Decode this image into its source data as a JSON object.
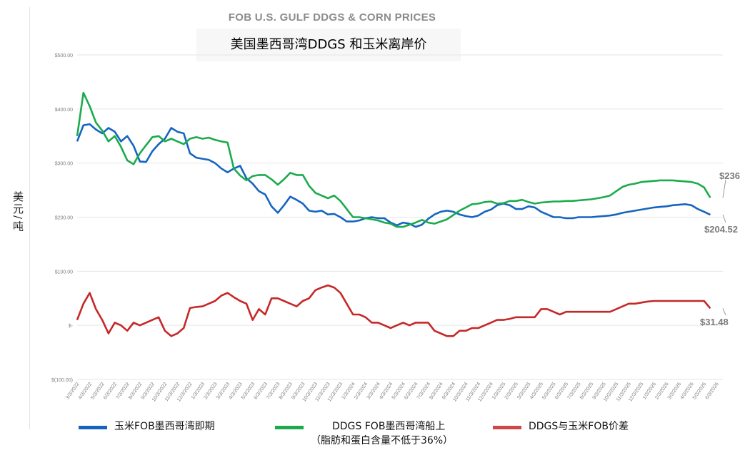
{
  "title_en": "FOB U.S. GULF DDGS & CORN PRICES",
  "title_cn": "美国墨西哥湾DDGS 和玉米离岸价",
  "y_unit": "美元/吨",
  "legend": {
    "corn": "玉米FOB墨西哥湾即期",
    "ddgs": "DDGS FOB墨西哥湾船上",
    "ddgs_note": "（脂肪和蛋白含量不低于36%）",
    "spread": "DDGS与玉米FOB价差"
  },
  "end_labels": {
    "ddgs": "$236",
    "corn": "$204.52",
    "spread": "$31.48"
  },
  "chart_data": {
    "type": "line",
    "title": "FOB U.S. GULF DDGS & CORN PRICES",
    "ylabel": "美元/吨",
    "ylim": [
      -100,
      500
    ],
    "y_ticks": [
      -100,
      0,
      100,
      200,
      300,
      400,
      500
    ],
    "y_tick_labels": [
      "$(100.00)",
      "$-",
      "$100.00",
      "$200.00",
      "$300.00",
      "$400.00",
      "$500.00"
    ],
    "x_tick_labels": [
      "3/3/2022",
      "4/3/2022",
      "5/3/2022",
      "6/3/2022",
      "7/3/2022",
      "8/3/2022",
      "9/3/2022",
      "10/3/2022",
      "11/3/2022",
      "12/3/2022",
      "1/3/2023",
      "2/3/2023",
      "3/3/2023",
      "4/3/2023",
      "5/3/2023",
      "6/3/2023",
      "7/3/2023",
      "8/3/2023",
      "9/3/2023",
      "10/3/2023",
      "11/3/2023",
      "12/3/2023",
      "1/3/2024",
      "2/3/2024",
      "3/3/2024",
      "4/3/2024",
      "5/3/2024",
      "6/3/2024",
      "7/3/2024",
      "8/3/2024",
      "9/3/2024",
      "10/3/2024",
      "11/3/2024",
      "12/3/2024",
      "1/3/2025",
      "2/3/2025",
      "3/3/2025",
      "4/3/2025",
      "5/3/2025",
      "6/3/2025",
      "7/3/2025",
      "8/3/2025",
      "9/3/2025",
      "10/3/2025",
      "11/3/2025",
      "12/3/2025",
      "1/3/2026",
      "2/3/2026",
      "3/3/2026",
      "4/3/2026",
      "5/3/2026",
      "6/3/2026"
    ],
    "grid": true,
    "legend_position": "bottom",
    "x_months": [
      0,
      0.5,
      1,
      1.5,
      2,
      2.5,
      3,
      3.5,
      4,
      4.5,
      5,
      5.5,
      6,
      6.5,
      7,
      7.5,
      8,
      8.5,
      9,
      9.5,
      10,
      10.5,
      11,
      11.5,
      12,
      12.5,
      13,
      13.5,
      14,
      14.5,
      15,
      15.5,
      16,
      16.5,
      17,
      17.5,
      18,
      18.5,
      19,
      19.5,
      20,
      20.5,
      21,
      21.5,
      22,
      22.5,
      23,
      23.5,
      24,
      24.5,
      25,
      25.5,
      26,
      26.5,
      27,
      27.5,
      28,
      28.5,
      29,
      29.5,
      30,
      30.5,
      31,
      31.5,
      32,
      32.5,
      33,
      33.5,
      34,
      34.5,
      35,
      35.5,
      36,
      36.5,
      37,
      37.5,
      38,
      38.5,
      39,
      39.5,
      40,
      40.5,
      41,
      41.5,
      42,
      42.5,
      43,
      43.5,
      44,
      44.5,
      45,
      45.5,
      46,
      46.5,
      47,
      47.5,
      48,
      48.5,
      49,
      49.5,
      50,
      50.5,
      51,
      51.5
    ],
    "series": [
      {
        "name": "玉米FOB墨西哥湾即期",
        "color": "#1565c0",
        "values": [
          340,
          370,
          372,
          362,
          355,
          365,
          358,
          340,
          350,
          332,
          303,
          302,
          322,
          335,
          345,
          365,
          358,
          355,
          318,
          310,
          308,
          306,
          300,
          290,
          283,
          290,
          295,
          272,
          262,
          248,
          242,
          220,
          208,
          222,
          238,
          232,
          225,
          212,
          210,
          212,
          205,
          206,
          200,
          192,
          192,
          194,
          198,
          200,
          198,
          198,
          190,
          185,
          190,
          188,
          182,
          186,
          197,
          205,
          210,
          212,
          210,
          205,
          202,
          200,
          203,
          210,
          214,
          222,
          225,
          222,
          215,
          215,
          220,
          218,
          210,
          205,
          200,
          200,
          198,
          198,
          200,
          200,
          200,
          201,
          202,
          203,
          205,
          208,
          210,
          212,
          214,
          216,
          218,
          219,
          220,
          222,
          223,
          224,
          222,
          215,
          210,
          204.52
        ]
      },
      {
        "name": "DDGS FOB墨西哥湾船上",
        "color": "#1bab4c",
        "values": [
          350,
          430,
          405,
          375,
          360,
          340,
          350,
          330,
          305,
          298,
          318,
          333,
          348,
          350,
          340,
          345,
          340,
          335,
          345,
          348,
          345,
          347,
          343,
          340,
          338,
          290,
          277,
          268,
          276,
          278,
          278,
          270,
          260,
          270,
          282,
          278,
          278,
          258,
          245,
          240,
          235,
          240,
          230,
          215,
          200,
          200,
          198,
          196,
          194,
          190,
          188,
          182,
          182,
          186,
          190,
          195,
          190,
          188,
          192,
          196,
          204,
          212,
          218,
          224,
          225,
          228,
          229,
          225,
          226,
          230,
          230,
          232,
          228,
          225,
          227,
          228,
          229,
          229,
          230,
          230,
          231,
          232,
          233,
          235,
          237,
          240,
          248,
          256,
          260,
          262,
          265,
          266,
          267,
          268,
          268,
          268,
          267,
          266,
          265,
          262,
          255,
          236
        ]
      },
      {
        "name": "DDGS与玉米FOB价差",
        "color": "#c62828",
        "values": [
          10,
          40,
          60,
          30,
          10,
          -15,
          5,
          0,
          -10,
          5,
          0,
          5,
          10,
          15,
          -10,
          -20,
          -15,
          -5,
          32,
          34,
          35,
          40,
          45,
          55,
          60,
          52,
          45,
          40,
          10,
          30,
          20,
          50,
          50,
          45,
          40,
          35,
          45,
          50,
          65,
          70,
          74,
          70,
          60,
          40,
          20,
          20,
          15,
          5,
          5,
          0,
          -5,
          0,
          5,
          0,
          5,
          5,
          5,
          -10,
          -15,
          -20,
          -20,
          -10,
          -10,
          -5,
          -5,
          0,
          5,
          10,
          10,
          12,
          15,
          15,
          15,
          15,
          30,
          30,
          25,
          20,
          25,
          25,
          25,
          25,
          25,
          25,
          25,
          25,
          30,
          35,
          40,
          40,
          42,
          44,
          45,
          45,
          45,
          45,
          45,
          45,
          45,
          45,
          45,
          31.48
        ]
      }
    ]
  }
}
